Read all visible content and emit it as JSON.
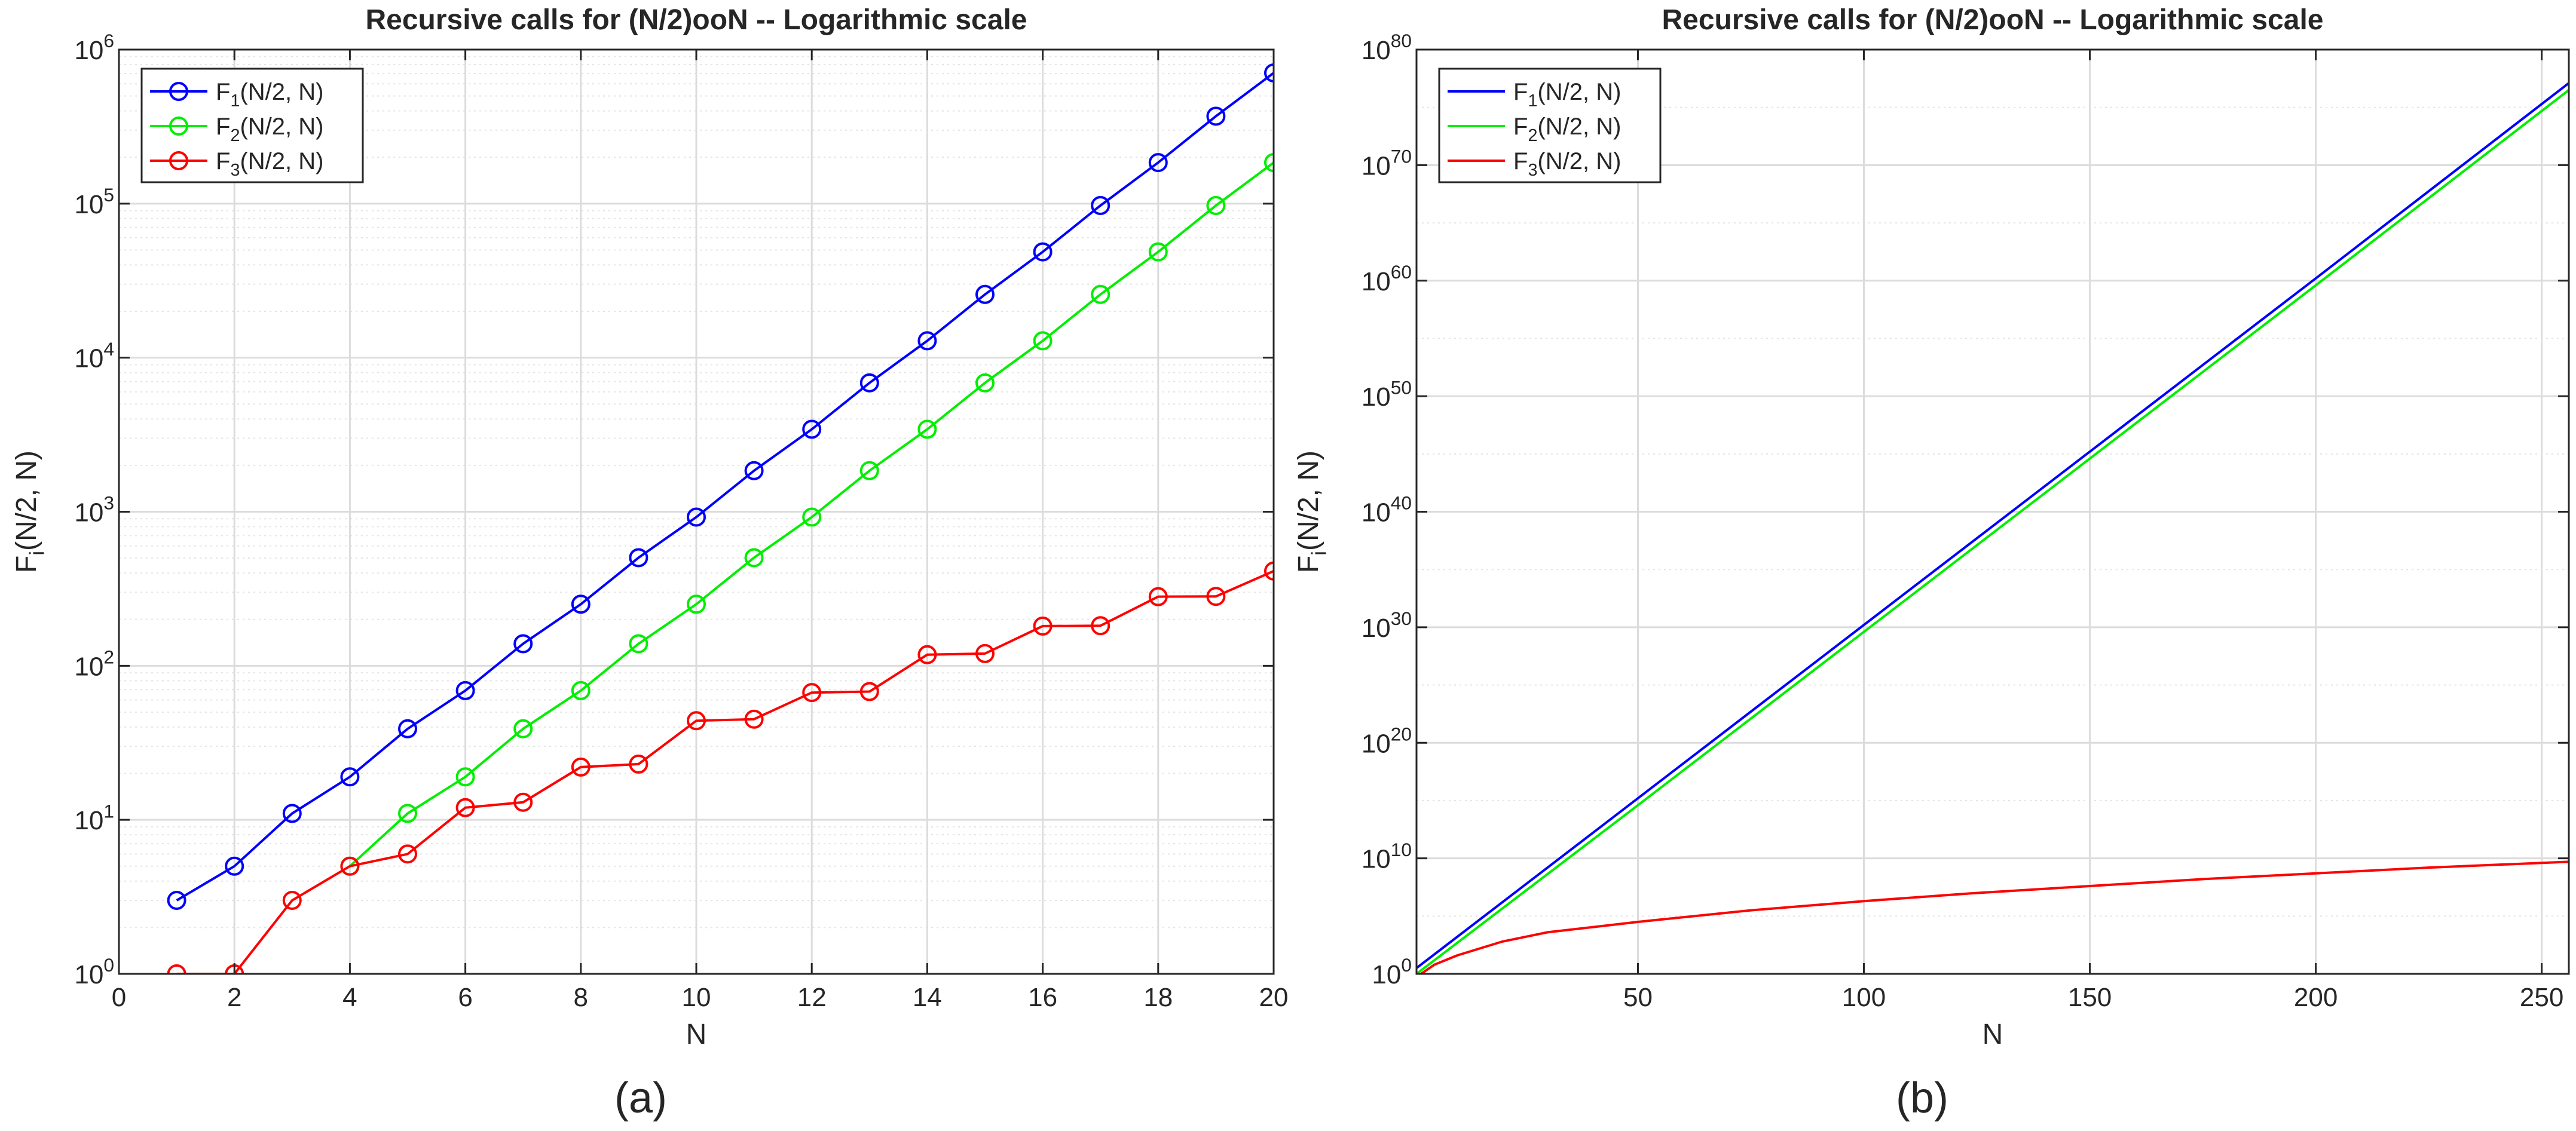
{
  "chart_data": [
    {
      "type": "line",
      "panel_label": "(a)",
      "title": "Recursive calls for (N/2)ooN -- Logarithmic scale",
      "xlabel": "N",
      "ylabel": "F_i(N/2, N)",
      "x_scale": "linear",
      "y_scale": "log",
      "xlim": [
        0,
        20
      ],
      "ylim": [
        1,
        1000000
      ],
      "x_ticks": [
        0,
        2,
        4,
        6,
        8,
        10,
        12,
        14,
        16,
        18,
        20
      ],
      "y_ticks": [
        {
          "base": "10",
          "exp": "0",
          "value": 1
        },
        {
          "base": "10",
          "exp": "1",
          "value": 10
        },
        {
          "base": "10",
          "exp": "2",
          "value": 100
        },
        {
          "base": "10",
          "exp": "3",
          "value": 1000
        },
        {
          "base": "10",
          "exp": "4",
          "value": 10000
        },
        {
          "base": "10",
          "exp": "5",
          "value": 100000
        },
        {
          "base": "10",
          "exp": "6",
          "value": 1000000
        }
      ],
      "grid": true,
      "minor_grid": true,
      "legend_position": "top-left",
      "markers": "circle",
      "series": [
        {
          "name": "F_1(N/2, N)",
          "color": "#0000ff",
          "x": [
            1,
            2,
            3,
            4,
            5,
            6,
            7,
            8,
            9,
            10,
            11,
            12,
            13,
            14,
            15,
            16,
            17,
            18,
            19,
            20
          ],
          "y": [
            3,
            5,
            11,
            19,
            39,
            69,
            139,
            251,
            503,
            923,
            1847,
            3431,
            6863,
            12869,
            25739,
            48619,
            97239,
            184755,
            369511,
            705431
          ]
        },
        {
          "name": "F_2(N/2, N)",
          "color": "#00ee00",
          "x": [
            4,
            5,
            6,
            7,
            8,
            9,
            10,
            11,
            12,
            13,
            14,
            15,
            16,
            17,
            18,
            19,
            20
          ],
          "y": [
            5,
            11,
            19,
            39,
            69,
            139,
            251,
            503,
            923,
            1847,
            3431,
            6863,
            12869,
            25739,
            48619,
            97239,
            184755
          ]
        },
        {
          "name": "F_3(N/2, N)",
          "color": "#ff0000",
          "x": [
            1,
            2,
            3,
            4,
            5,
            6,
            7,
            8,
            9,
            10,
            11,
            12,
            13,
            14,
            15,
            16,
            17,
            18,
            19,
            20
          ],
          "y": [
            1,
            1,
            3,
            5,
            6,
            12,
            13,
            22,
            23,
            44,
            45,
            67,
            68,
            118,
            120,
            181,
            182,
            281,
            282,
            412
          ]
        }
      ]
    },
    {
      "type": "line",
      "panel_label": "(b)",
      "title": "Recursive calls for (N/2)ooN -- Logarithmic scale",
      "xlabel": "N",
      "ylabel": "F_i(N/2, N)",
      "x_scale": "linear",
      "y_scale": "log",
      "xlim": [
        1,
        256
      ],
      "ylim_log10": [
        0,
        80
      ],
      "x_ticks": [
        50,
        100,
        150,
        200,
        250
      ],
      "y_ticks": [
        {
          "base": "10",
          "exp": "0",
          "log10": 0
        },
        {
          "base": "10",
          "exp": "10",
          "log10": 10
        },
        {
          "base": "10",
          "exp": "20",
          "log10": 20
        },
        {
          "base": "10",
          "exp": "30",
          "log10": 30
        },
        {
          "base": "10",
          "exp": "40",
          "log10": 40
        },
        {
          "base": "10",
          "exp": "50",
          "log10": 50
        },
        {
          "base": "10",
          "exp": "60",
          "log10": 60
        },
        {
          "base": "10",
          "exp": "70",
          "log10": 70
        },
        {
          "base": "10",
          "exp": "80",
          "log10": 80
        }
      ],
      "grid": true,
      "minor_grid": true,
      "legend_position": "top-left",
      "markers": "none",
      "series": [
        {
          "name": "F_1(N/2, N)",
          "color": "#0000ff",
          "x": [
            1,
            50,
            100,
            150,
            200,
            256
          ],
          "y_log10": [
            0.5,
            15.2,
            30.2,
            45.2,
            60.2,
            77.1
          ]
        },
        {
          "name": "F_2(N/2, N)",
          "color": "#00ee00",
          "x": [
            1,
            50,
            100,
            150,
            200,
            256
          ],
          "y_log10": [
            0,
            14.6,
            29.6,
            44.6,
            59.6,
            76.5
          ]
        },
        {
          "name": "F_3(N/2, N)",
          "color": "#ff0000",
          "x": [
            1,
            2,
            5,
            10,
            20,
            30,
            50,
            75,
            100,
            125,
            150,
            175,
            200,
            225,
            256
          ],
          "y_log10": [
            0,
            0,
            0.8,
            1.6,
            2.8,
            3.6,
            4.5,
            5.5,
            6.3,
            7.0,
            7.6,
            8.2,
            8.7,
            9.2,
            9.7
          ]
        }
      ]
    }
  ]
}
